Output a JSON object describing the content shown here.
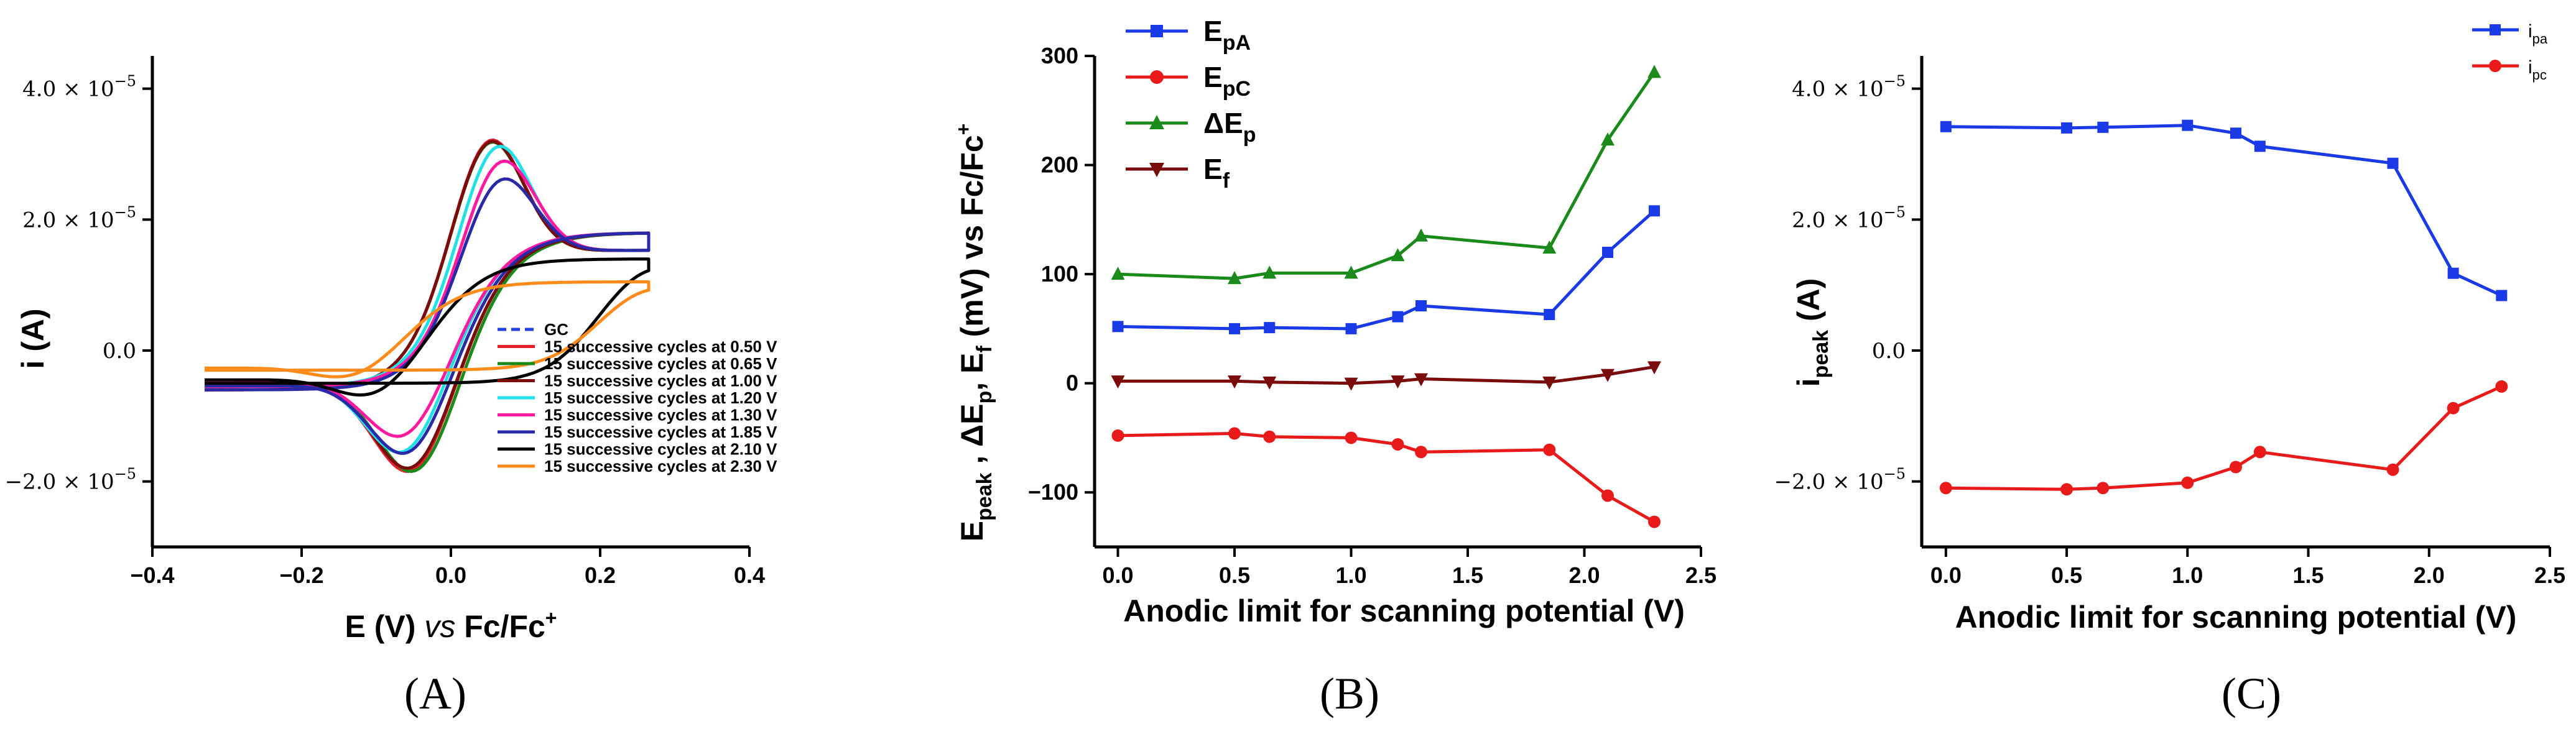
{
  "chart_data": [
    {
      "id": "A",
      "type": "line",
      "panel_label": "(A)",
      "xlabel": "E (V) vs Fc/Fc+",
      "xlabel_parts": [
        "E (V) ",
        "vs",
        " Fc/Fc",
        "+"
      ],
      "ylabel": "i (A)",
      "xlim": [
        -0.4,
        0.4
      ],
      "ylim": [
        -3e-05,
        4.5e-05
      ],
      "x_ticks": [
        -0.4,
        -0.2,
        0.0,
        0.2,
        0.4
      ],
      "x_tick_labels": [
        "−0.4",
        "−0.2",
        "0.0",
        "0.2",
        "0.4"
      ],
      "y_ticks": [
        -2e-05,
        0.0,
        2e-05,
        4e-05
      ],
      "y_tick_labels": [
        {
          "m": "−2.0 × 10",
          "e": "−5"
        },
        {
          "m": "0.0",
          "e": ""
        },
        {
          "m": "2.0 × 10",
          "e": "−5"
        },
        {
          "m": "4.0 × 10",
          "e": "−5"
        }
      ],
      "legend_position": "bottom-right",
      "series": [
        {
          "name": "GC",
          "color": "#2040e0",
          "dash": true,
          "peak_ox": 3.45e-05,
          "e_ox": 0.05,
          "peak_red": -2.1e-05,
          "e_red": -0.05,
          "end_cur": 1.8e-05,
          "start_cur": -6e-06
        },
        {
          "name": "15 successive cycles at 0.50 V",
          "color": "#e8202a",
          "peak_ox": 3.45e-05,
          "e_ox": 0.05,
          "peak_red": -2.1e-05,
          "e_red": -0.05,
          "end_cur": 1.8e-05,
          "start_cur": -6e-06
        },
        {
          "name": "15 successive cycles at 0.65 V",
          "color": "#1a8a1a",
          "peak_ox": 3.42e-05,
          "e_ox": 0.05,
          "peak_red": -2.1e-05,
          "e_red": -0.045,
          "end_cur": 1.8e-05,
          "start_cur": -6e-06
        },
        {
          "name": "15 successive cycles at 1.00 V",
          "color": "#7a0c0c",
          "peak_ox": 3.43e-05,
          "e_ox": 0.05,
          "peak_red": -2.05e-05,
          "e_red": -0.05,
          "end_cur": 1.8e-05,
          "start_cur": -6e-06
        },
        {
          "name": "15 successive cycles at 1.20 V",
          "color": "#20e0e8",
          "peak_ox": 3.35e-05,
          "e_ox": 0.06,
          "peak_red": -1.8e-05,
          "e_red": -0.06,
          "end_cur": 1.8e-05,
          "start_cur": -5.5e-06
        },
        {
          "name": "15 successive cycles at 1.30 V",
          "color": "#ff1aa0",
          "peak_ox": 3.12e-05,
          "e_ox": 0.065,
          "peak_red": -1.55e-05,
          "e_red": -0.06,
          "end_cur": 1.8e-05,
          "start_cur": -5.5e-06
        },
        {
          "name": "15 successive cycles at 1.85 V",
          "color": "#2a2aa8",
          "peak_ox": 2.85e-05,
          "e_ox": 0.065,
          "peak_red": -1.82e-05,
          "e_red": -0.055,
          "end_cur": 1.8e-05,
          "start_cur": -6e-06
        },
        {
          "name": "15 successive cycles at 2.10 V",
          "color": "#000000",
          "peak_ox": 1.4e-05,
          "e_ox": 0.26,
          "peak_red": -8.5e-06,
          "e_red": -0.1,
          "end_cur": 1.4e-05,
          "start_cur": -5e-06
        },
        {
          "name": "15 successive cycles at 2.30 V",
          "color": "#ff8c1a",
          "peak_ox": 1.05e-05,
          "e_ox": 0.26,
          "peak_red": -5.2e-06,
          "e_red": -0.13,
          "end_cur": 1.05e-05,
          "start_cur": -3e-06
        }
      ]
    },
    {
      "id": "B",
      "type": "line",
      "panel_label": "(B)",
      "xlabel": "Anodic limit for scanning potential (V)",
      "ylabel": "Epeak , ΔEp, Ef (mV) vs Fc/Fc+",
      "ylabel_parts": [
        "E",
        "peak",
        " , ΔE",
        "p",
        ", E",
        "f",
        " (mV) vs Fc/Fc",
        "+"
      ],
      "xlim": [
        -0.1,
        2.5
      ],
      "ylim": [
        -150,
        300
      ],
      "x_ticks": [
        0.0,
        0.5,
        1.0,
        1.5,
        2.0,
        2.5
      ],
      "x_tick_labels": [
        "0.0",
        "0.5",
        "1.0",
        "1.5",
        "2.0",
        "2.5"
      ],
      "y_ticks": [
        -100,
        0,
        100,
        200,
        300
      ],
      "y_tick_labels": [
        "−100",
        "0",
        "100",
        "200",
        "300"
      ],
      "legend_position": "top-left",
      "x": [
        0.0,
        0.5,
        0.65,
        1.0,
        1.2,
        1.3,
        1.85,
        2.1,
        2.3
      ],
      "series": [
        {
          "name": "EpA",
          "label_main": "E",
          "label_sub": "pA",
          "color": "#1a3ae8",
          "marker": "square",
          "values": [
            52,
            50,
            51,
            50,
            61,
            71,
            63,
            120,
            158
          ]
        },
        {
          "name": "EpC",
          "label_main": "E",
          "label_sub": "pC",
          "color": "#e81a1a",
          "marker": "circle",
          "values": [
            -48,
            -46,
            -49,
            -50,
            -56,
            -63,
            -61,
            -103,
            -127
          ]
        },
        {
          "name": "ΔEp",
          "label_main": "ΔE",
          "label_sub": "p",
          "color": "#1a8a1a",
          "marker": "triangle-up",
          "values": [
            100,
            96,
            101,
            101,
            117,
            135,
            124,
            223,
            285
          ]
        },
        {
          "name": "Ef",
          "label_main": "E",
          "label_sub": "f",
          "color": "#7a0c0c",
          "marker": "triangle-down",
          "values": [
            2,
            2,
            1,
            0,
            2,
            4,
            1,
            8,
            15
          ]
        }
      ]
    },
    {
      "id": "C",
      "type": "line",
      "panel_label": "(C)",
      "xlabel": "Anodic limit for scanning potential (V)",
      "ylabel": "ipeak (A)",
      "ylabel_parts": [
        "i",
        "peak",
        " (A)"
      ],
      "xlim": [
        -0.1,
        2.5
      ],
      "ylim": [
        -3e-05,
        4.5e-05
      ],
      "x_ticks": [
        0.0,
        0.5,
        1.0,
        1.5,
        2.0,
        2.5
      ],
      "x_tick_labels": [
        "0.0",
        "0.5",
        "1.0",
        "1.5",
        "2.0",
        "2.5"
      ],
      "y_ticks": [
        -2e-05,
        0.0,
        2e-05,
        4e-05
      ],
      "y_tick_labels": [
        {
          "m": "−2.0 × 10",
          "e": "−5"
        },
        {
          "m": "0.0",
          "e": ""
        },
        {
          "m": "2.0 × 10",
          "e": "−5"
        },
        {
          "m": "4.0 × 10",
          "e": "−5"
        }
      ],
      "legend_position": "top-right",
      "x": [
        0.0,
        0.5,
        0.65,
        1.0,
        1.2,
        1.3,
        1.85,
        2.1,
        2.3
      ],
      "series": [
        {
          "name": "ipa",
          "label_main": "i",
          "label_sub": "pa",
          "color": "#1a3ae8",
          "marker": "square",
          "values": [
            3.42e-05,
            3.4e-05,
            3.41e-05,
            3.44e-05,
            3.32e-05,
            3.12e-05,
            2.86e-05,
            1.18e-05,
            8.4e-06
          ]
        },
        {
          "name": "ipc",
          "label_main": "i",
          "label_sub": "pc",
          "color": "#e81a1a",
          "marker": "circle",
          "values": [
            -2.1e-05,
            -2.12e-05,
            -2.1e-05,
            -2.02e-05,
            -1.78e-05,
            -1.55e-05,
            -1.82e-05,
            -8.8e-06,
            -5.5e-06
          ]
        }
      ]
    }
  ]
}
